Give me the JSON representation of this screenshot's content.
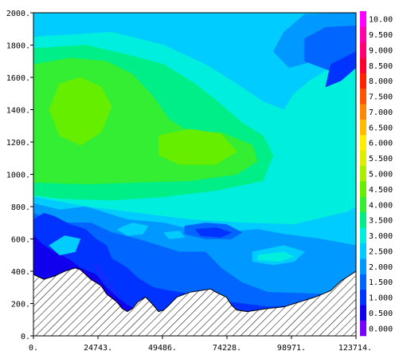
{
  "chart_data": {
    "type": "heatmap",
    "title": "",
    "xlabel": "",
    "ylabel": "",
    "xlim": [
      0,
      123714
    ],
    "ylim": [
      0,
      2000
    ],
    "x_ticks": [
      {
        "value": 0,
        "label": "0."
      },
      {
        "value": 24743,
        "label": "24743."
      },
      {
        "value": 49486,
        "label": "49486."
      },
      {
        "value": 74228,
        "label": "74228."
      },
      {
        "value": 98971,
        "label": "98971."
      },
      {
        "value": 123714,
        "label": "123714."
      }
    ],
    "y_ticks": [
      {
        "value": 0,
        "label": "0."
      },
      {
        "value": 200,
        "label": "200."
      },
      {
        "value": 400,
        "label": "400."
      },
      {
        "value": 600,
        "label": "600."
      },
      {
        "value": 800,
        "label": "800."
      },
      {
        "value": 1000,
        "label": "1000."
      },
      {
        "value": 1200,
        "label": "1200."
      },
      {
        "value": 1400,
        "label": "1400."
      },
      {
        "value": 1600,
        "label": "1600."
      },
      {
        "value": 1800,
        "label": "1800."
      },
      {
        "value": 2000,
        "label": "2000."
      }
    ],
    "colorbar": {
      "placement": "right",
      "levels": [
        {
          "value": 0.0,
          "label": "0.000",
          "color": "#7700ff"
        },
        {
          "value": 0.5,
          "label": "0.500",
          "color": "#1100ee"
        },
        {
          "value": 1.0,
          "label": "1.000",
          "color": "#0033ff"
        },
        {
          "value": 1.5,
          "label": "1.500",
          "color": "#0066ff"
        },
        {
          "value": 2.0,
          "label": "2.000",
          "color": "#0099ff"
        },
        {
          "value": 2.5,
          "label": "2.500",
          "color": "#00ccff"
        },
        {
          "value": 3.0,
          "label": "3.000",
          "color": "#00eedd"
        },
        {
          "value": 3.5,
          "label": "3.500",
          "color": "#00ee88"
        },
        {
          "value": 4.0,
          "label": "4.000",
          "color": "#33ee33"
        },
        {
          "value": 4.5,
          "label": "4.500",
          "color": "#66ee00"
        },
        {
          "value": 5.0,
          "label": "5.000",
          "color": "#aaee00"
        },
        {
          "value": 5.5,
          "label": "5.500",
          "color": "#ddee00"
        },
        {
          "value": 6.0,
          "label": "6.000",
          "color": "#ffee00"
        },
        {
          "value": 6.5,
          "label": "6.500",
          "color": "#ffbb00"
        },
        {
          "value": 7.0,
          "label": "7.000",
          "color": "#ff8800"
        },
        {
          "value": 7.5,
          "label": "7.500",
          "color": "#ff5500"
        },
        {
          "value": 8.0,
          "label": "8.000",
          "color": "#ff2200"
        },
        {
          "value": 8.5,
          "label": "8.500",
          "color": "#ff0033"
        },
        {
          "value": 9.0,
          "label": "9.000",
          "color": "#ff0077"
        },
        {
          "value": 9.5,
          "label": "9.500",
          "color": "#ff00aa"
        },
        {
          "value": 10.0,
          "label": "10.00",
          "color": "#ff00ff"
        }
      ]
    },
    "regions": [
      {
        "level": 2.5,
        "points": [
          [
            0,
            1920
          ],
          [
            40000,
            1950
          ],
          [
            60000,
            1860
          ],
          [
            74000,
            1700
          ],
          [
            84000,
            1540
          ],
          [
            94000,
            1500
          ],
          [
            100000,
            1610
          ],
          [
            110000,
            1780
          ],
          [
            123714,
            1880
          ],
          [
            123714,
            0
          ],
          [
            0,
            0
          ]
        ]
      },
      {
        "level": 3.0,
        "points": [
          [
            0,
            1850
          ],
          [
            30000,
            1880
          ],
          [
            50000,
            1800
          ],
          [
            66000,
            1680
          ],
          [
            78000,
            1560
          ],
          [
            88000,
            1450
          ],
          [
            96000,
            1400
          ],
          [
            100000,
            1500
          ],
          [
            106000,
            1580
          ],
          [
            112000,
            1640
          ],
          [
            116000,
            1700
          ],
          [
            123714,
            1760
          ],
          [
            123714,
            800
          ],
          [
            115000,
            720
          ],
          [
            100000,
            680
          ],
          [
            80000,
            640
          ],
          [
            60000,
            600
          ],
          [
            40000,
            580
          ],
          [
            20000,
            600
          ],
          [
            0,
            700
          ]
        ]
      },
      {
        "level": 3.5,
        "points": [
          [
            0,
            1780
          ],
          [
            20000,
            1800
          ],
          [
            36000,
            1740
          ],
          [
            50000,
            1680
          ],
          [
            62000,
            1560
          ],
          [
            70000,
            1460
          ],
          [
            80000,
            1320
          ],
          [
            88000,
            1240
          ],
          [
            92000,
            1120
          ],
          [
            88000,
            960
          ],
          [
            70000,
            900
          ],
          [
            50000,
            860
          ],
          [
            30000,
            840
          ],
          [
            10000,
            850
          ],
          [
            0,
            870
          ]
        ]
      },
      {
        "level": 4.0,
        "points": [
          [
            0,
            1680
          ],
          [
            14000,
            1720
          ],
          [
            28000,
            1700
          ],
          [
            38000,
            1620
          ],
          [
            46000,
            1480
          ],
          [
            52000,
            1340
          ],
          [
            60000,
            1260
          ],
          [
            72000,
            1260
          ],
          [
            84000,
            1180
          ],
          [
            86000,
            1080
          ],
          [
            78000,
            1000
          ],
          [
            60000,
            960
          ],
          [
            40000,
            950
          ],
          [
            20000,
            940
          ],
          [
            0,
            950
          ]
        ]
      },
      {
        "level": 4.5,
        "points": [
          [
            10000,
            1560
          ],
          [
            18000,
            1600
          ],
          [
            26000,
            1540
          ],
          [
            30000,
            1420
          ],
          [
            26000,
            1260
          ],
          [
            18000,
            1180
          ],
          [
            10000,
            1240
          ],
          [
            6000,
            1400
          ]
        ]
      },
      {
        "level": 4.5,
        "points": [
          [
            48000,
            1240
          ],
          [
            60000,
            1280
          ],
          [
            72000,
            1250
          ],
          [
            78000,
            1140
          ],
          [
            70000,
            1060
          ],
          [
            56000,
            1060
          ],
          [
            48000,
            1120
          ]
        ]
      },
      {
        "level": 2.0,
        "points": [
          [
            123714,
            1780
          ],
          [
            112000,
            1720
          ],
          [
            98000,
            1660
          ],
          [
            92000,
            1760
          ],
          [
            96000,
            1880
          ],
          [
            104000,
            1990
          ],
          [
            123714,
            2000
          ]
        ]
      },
      {
        "level": 1.5,
        "points": [
          [
            123714,
            1700
          ],
          [
            114000,
            1640
          ],
          [
            104000,
            1700
          ],
          [
            104000,
            1840
          ],
          [
            112000,
            1910
          ],
          [
            123714,
            1920
          ]
        ]
      },
      {
        "level": 1.0,
        "points": [
          [
            123714,
            1660
          ],
          [
            118000,
            1580
          ],
          [
            112000,
            1540
          ],
          [
            114000,
            1680
          ],
          [
            123714,
            1760
          ]
        ]
      },
      {
        "level": 2.5,
        "points": [
          [
            0,
            860
          ],
          [
            20000,
            800
          ],
          [
            40000,
            760
          ],
          [
            60000,
            720
          ],
          [
            80000,
            700
          ],
          [
            100000,
            690
          ],
          [
            123714,
            780
          ],
          [
            123714,
            0
          ],
          [
            0,
            0
          ]
        ]
      },
      {
        "level": 2.0,
        "points": [
          [
            0,
            820
          ],
          [
            10000,
            780
          ],
          [
            20000,
            800
          ],
          [
            28000,
            760
          ],
          [
            36000,
            720
          ],
          [
            50000,
            700
          ],
          [
            60000,
            660
          ],
          [
            72000,
            640
          ],
          [
            86000,
            660
          ],
          [
            96000,
            630
          ],
          [
            110000,
            600
          ],
          [
            123714,
            560
          ],
          [
            123714,
            0
          ],
          [
            0,
            0
          ]
        ]
      },
      {
        "level": 1.5,
        "points": [
          [
            0,
            760
          ],
          [
            6000,
            720
          ],
          [
            12000,
            700
          ],
          [
            22000,
            700
          ],
          [
            30000,
            640
          ],
          [
            40000,
            600
          ],
          [
            48000,
            560
          ],
          [
            56000,
            520
          ],
          [
            66000,
            520
          ],
          [
            72000,
            420
          ],
          [
            80000,
            330
          ],
          [
            90000,
            270
          ],
          [
            110000,
            260
          ],
          [
            123714,
            300
          ],
          [
            123714,
            0
          ],
          [
            0,
            0
          ]
        ]
      },
      {
        "level": 1.0,
        "points": [
          [
            0,
            720
          ],
          [
            4000,
            760
          ],
          [
            8000,
            740
          ],
          [
            14000,
            690
          ],
          [
            20000,
            660
          ],
          [
            24000,
            600
          ],
          [
            28000,
            560
          ],
          [
            30000,
            480
          ],
          [
            36000,
            420
          ],
          [
            40000,
            360
          ],
          [
            46000,
            300
          ],
          [
            52000,
            280
          ],
          [
            60000,
            260
          ],
          [
            70000,
            220
          ],
          [
            90000,
            180
          ],
          [
            123714,
            200
          ],
          [
            123714,
            0
          ],
          [
            0,
            0
          ]
        ]
      },
      {
        "level": 0.5,
        "points": [
          [
            0,
            620
          ],
          [
            4000,
            560
          ],
          [
            8000,
            520
          ],
          [
            14000,
            470
          ],
          [
            18000,
            420
          ],
          [
            24000,
            380
          ],
          [
            28000,
            300
          ],
          [
            32000,
            240
          ],
          [
            36000,
            190
          ],
          [
            40000,
            160
          ],
          [
            0,
            160
          ]
        ]
      },
      {
        "level": 0.0,
        "points": [
          [
            24000,
            440
          ],
          [
            26000,
            380
          ],
          [
            30000,
            300
          ],
          [
            32000,
            250
          ],
          [
            30000,
            300
          ],
          [
            27000,
            360
          ]
        ]
      },
      {
        "level": 1.5,
        "points": [
          [
            58000,
            680
          ],
          [
            66000,
            700
          ],
          [
            74000,
            690
          ],
          [
            80000,
            640
          ],
          [
            76000,
            600
          ],
          [
            66000,
            600
          ],
          [
            58000,
            630
          ]
        ]
      },
      {
        "level": 1.0,
        "points": [
          [
            62000,
            660
          ],
          [
            70000,
            670
          ],
          [
            76000,
            640
          ],
          [
            72000,
            610
          ],
          [
            64000,
            620
          ]
        ]
      },
      {
        "level": 2.5,
        "points": [
          [
            84000,
            520
          ],
          [
            96000,
            560
          ],
          [
            104000,
            520
          ],
          [
            100000,
            460
          ],
          [
            92000,
            440
          ],
          [
            84000,
            460
          ]
        ]
      },
      {
        "level": 3.0,
        "points": [
          [
            86000,
            500
          ],
          [
            96000,
            520
          ],
          [
            100000,
            490
          ],
          [
            94000,
            460
          ],
          [
            86000,
            470
          ]
        ]
      },
      {
        "level": 2.5,
        "points": [
          [
            32000,
            660
          ],
          [
            38000,
            700
          ],
          [
            44000,
            680
          ],
          [
            42000,
            630
          ],
          [
            36000,
            620
          ]
        ]
      },
      {
        "level": 2.5,
        "points": [
          [
            50000,
            640
          ],
          [
            56000,
            650
          ],
          [
            58000,
            610
          ],
          [
            52000,
            600
          ]
        ]
      },
      {
        "level": 2.5,
        "points": [
          [
            6000,
            560
          ],
          [
            12000,
            620
          ],
          [
            18000,
            600
          ],
          [
            16000,
            520
          ],
          [
            10000,
            500
          ]
        ]
      }
    ],
    "topography": [
      [
        0,
        380
      ],
      [
        4000,
        350
      ],
      [
        8000,
        370
      ],
      [
        12000,
        400
      ],
      [
        16000,
        420
      ],
      [
        18000,
        410
      ],
      [
        22000,
        350
      ],
      [
        26000,
        310
      ],
      [
        28000,
        260
      ],
      [
        32000,
        210
      ],
      [
        34000,
        170
      ],
      [
        36000,
        150
      ],
      [
        38000,
        170
      ],
      [
        40000,
        210
      ],
      [
        43000,
        240
      ],
      [
        46000,
        190
      ],
      [
        48000,
        150
      ],
      [
        50000,
        160
      ],
      [
        52000,
        190
      ],
      [
        55000,
        240
      ],
      [
        60000,
        270
      ],
      [
        64000,
        280
      ],
      [
        68000,
        290
      ],
      [
        70000,
        270
      ],
      [
        74000,
        240
      ],
      [
        76000,
        190
      ],
      [
        78000,
        160
      ],
      [
        82000,
        150
      ],
      [
        86000,
        160
      ],
      [
        90000,
        170
      ],
      [
        96000,
        180
      ],
      [
        102000,
        210
      ],
      [
        108000,
        240
      ],
      [
        114000,
        280
      ],
      [
        118000,
        340
      ],
      [
        123714,
        400
      ]
    ]
  }
}
